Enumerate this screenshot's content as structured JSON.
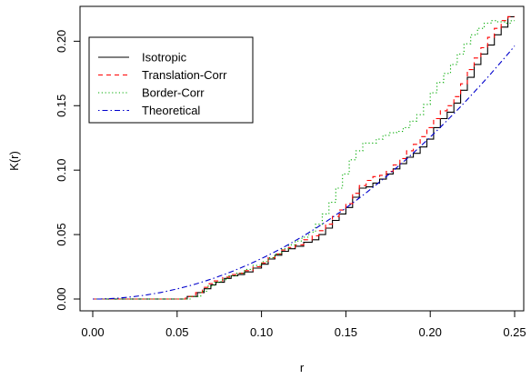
{
  "chart_data": {
    "type": "line",
    "title": "",
    "xlabel": "r",
    "ylabel": "K(r)",
    "xlim": [
      0,
      0.25
    ],
    "ylim": [
      0,
      0.22
    ],
    "x_ticks": [
      "0.00",
      "0.05",
      "0.10",
      "0.15",
      "0.20",
      "0.25"
    ],
    "y_ticks": [
      "0.00",
      "0.05",
      "0.10",
      "0.15",
      "0.20"
    ],
    "grid": false,
    "legend_position": "top-left",
    "series": [
      {
        "name": "Isotropic",
        "color": "#000000",
        "dash": "solid",
        "step": true,
        "x": [
          0,
          0.056,
          0.062,
          0.066,
          0.07,
          0.073,
          0.078,
          0.082,
          0.086,
          0.09,
          0.095,
          0.1,
          0.104,
          0.108,
          0.112,
          0.116,
          0.12,
          0.125,
          0.13,
          0.134,
          0.138,
          0.142,
          0.146,
          0.15,
          0.154,
          0.158,
          0.162,
          0.166,
          0.17,
          0.174,
          0.178,
          0.182,
          0.186,
          0.19,
          0.194,
          0.198,
          0.202,
          0.206,
          0.21,
          0.214,
          0.218,
          0.222,
          0.226,
          0.23,
          0.234,
          0.238,
          0.242,
          0.246,
          0.25
        ],
        "y": [
          0,
          0.002,
          0.005,
          0.008,
          0.011,
          0.013,
          0.016,
          0.018,
          0.019,
          0.021,
          0.024,
          0.027,
          0.031,
          0.034,
          0.037,
          0.039,
          0.041,
          0.044,
          0.046,
          0.05,
          0.055,
          0.061,
          0.066,
          0.071,
          0.079,
          0.086,
          0.087,
          0.09,
          0.093,
          0.097,
          0.101,
          0.105,
          0.11,
          0.113,
          0.118,
          0.124,
          0.133,
          0.14,
          0.145,
          0.152,
          0.162,
          0.172,
          0.182,
          0.19,
          0.197,
          0.205,
          0.211,
          0.219,
          0.219
        ]
      },
      {
        "name": "Translation-Corr",
        "color": "#ff0000",
        "dash": "dashed",
        "step": true,
        "x": [
          0,
          0.055,
          0.061,
          0.065,
          0.069,
          0.072,
          0.077,
          0.081,
          0.085,
          0.09,
          0.095,
          0.1,
          0.104,
          0.108,
          0.112,
          0.116,
          0.12,
          0.125,
          0.13,
          0.134,
          0.138,
          0.142,
          0.146,
          0.15,
          0.154,
          0.158,
          0.162,
          0.166,
          0.17,
          0.174,
          0.178,
          0.182,
          0.186,
          0.19,
          0.194,
          0.198,
          0.202,
          0.206,
          0.21,
          0.214,
          0.218,
          0.222,
          0.226,
          0.23,
          0.234,
          0.238,
          0.242,
          0.246,
          0.25
        ],
        "y": [
          0,
          0.002,
          0.005,
          0.009,
          0.012,
          0.014,
          0.017,
          0.019,
          0.02,
          0.022,
          0.025,
          0.028,
          0.032,
          0.035,
          0.038,
          0.04,
          0.042,
          0.046,
          0.049,
          0.053,
          0.058,
          0.064,
          0.069,
          0.074,
          0.082,
          0.088,
          0.092,
          0.095,
          0.096,
          0.099,
          0.104,
          0.109,
          0.115,
          0.12,
          0.126,
          0.133,
          0.14,
          0.146,
          0.15,
          0.157,
          0.167,
          0.178,
          0.187,
          0.195,
          0.203,
          0.21,
          0.216,
          0.219,
          0.219
        ]
      },
      {
        "name": "Border-Corr",
        "color": "#00aa00",
        "dash": "dotted",
        "step": true,
        "x": [
          0,
          0.058,
          0.064,
          0.068,
          0.072,
          0.076,
          0.08,
          0.085,
          0.09,
          0.095,
          0.1,
          0.104,
          0.108,
          0.112,
          0.116,
          0.12,
          0.124,
          0.128,
          0.132,
          0.136,
          0.14,
          0.144,
          0.148,
          0.152,
          0.156,
          0.16,
          0.164,
          0.168,
          0.172,
          0.176,
          0.18,
          0.184,
          0.188,
          0.192,
          0.196,
          0.2,
          0.204,
          0.208,
          0.212,
          0.216,
          0.22,
          0.224,
          0.228,
          0.232,
          0.236,
          0.24,
          0.244,
          0.248,
          0.25
        ],
        "y": [
          0,
          0.002,
          0.006,
          0.01,
          0.013,
          0.015,
          0.018,
          0.02,
          0.023,
          0.026,
          0.029,
          0.032,
          0.035,
          0.039,
          0.042,
          0.045,
          0.048,
          0.052,
          0.058,
          0.066,
          0.075,
          0.086,
          0.097,
          0.108,
          0.115,
          0.121,
          0.121,
          0.124,
          0.127,
          0.129,
          0.13,
          0.133,
          0.138,
          0.143,
          0.151,
          0.16,
          0.168,
          0.175,
          0.182,
          0.19,
          0.198,
          0.205,
          0.21,
          0.214,
          0.216,
          0.215,
          0.214,
          0.216,
          0.216
        ]
      },
      {
        "name": "Theoretical",
        "color": "#0000cc",
        "dash": "dotdash",
        "step": false,
        "formula": "pi*r^2",
        "x": [
          0,
          0.025,
          0.05,
          0.075,
          0.1,
          0.125,
          0.15,
          0.175,
          0.2,
          0.225,
          0.25
        ],
        "y": [
          0,
          0.00196,
          0.00785,
          0.01767,
          0.03142,
          0.04909,
          0.07069,
          0.09621,
          0.12566,
          0.15904,
          0.19635
        ]
      }
    ]
  }
}
